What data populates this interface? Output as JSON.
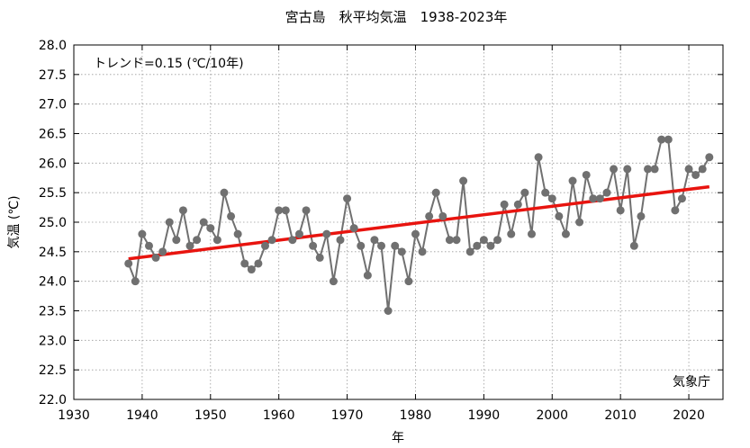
{
  "chart_data": {
    "type": "line",
    "title": "宮古島　秋平均気温　1938-2023年",
    "xlabel": "年",
    "ylabel": "気温 (℃)",
    "xlim": [
      1930,
      2025
    ],
    "ylim": [
      22.0,
      28.0
    ],
    "x_ticks": [
      "1930",
      "1940",
      "1950",
      "1960",
      "1970",
      "1980",
      "1990",
      "2000",
      "2010",
      "2020"
    ],
    "y_ticks": [
      "22.0",
      "22.5",
      "23.0",
      "23.5",
      "24.0",
      "24.5",
      "25.0",
      "25.5",
      "26.0",
      "26.5",
      "27.0",
      "27.5",
      "28.0"
    ],
    "grid": true,
    "trend_label": "トレンド=0.15 (℃/10年)",
    "credit": "気象庁",
    "series": [
      {
        "color": "#707070",
        "x": [
          1938,
          1939,
          1940,
          1941,
          1942,
          1943,
          1944,
          1945,
          1946,
          1947,
          1948,
          1949,
          1950,
          1951,
          1952,
          1953,
          1954,
          1955,
          1956,
          1957,
          1958,
          1959,
          1960,
          1961,
          1962,
          1963,
          1964,
          1965,
          1966,
          1967,
          1968,
          1969,
          1970,
          1971,
          1972,
          1973,
          1974,
          1975,
          1976,
          1977,
          1978,
          1979,
          1980,
          1981,
          1982,
          1983,
          1984,
          1985,
          1986,
          1987,
          1988,
          1989,
          1990,
          1991,
          1992,
          1993,
          1994,
          1995,
          1996,
          1997,
          1998,
          1999,
          2000,
          2001,
          2002,
          2003,
          2004,
          2005,
          2006,
          2007,
          2008,
          2009,
          2010,
          2011,
          2012,
          2013,
          2014,
          2015,
          2016,
          2017,
          2018,
          2019,
          2020,
          2021,
          2022,
          2023
        ],
        "y": [
          24.3,
          24.0,
          24.8,
          24.6,
          24.4,
          24.5,
          25.0,
          24.7,
          25.2,
          24.6,
          24.7,
          25.0,
          24.9,
          24.7,
          25.5,
          25.1,
          24.8,
          24.3,
          24.2,
          24.3,
          24.6,
          24.7,
          25.2,
          25.2,
          24.7,
          24.8,
          25.2,
          24.6,
          24.4,
          24.8,
          24.0,
          24.7,
          25.4,
          24.9,
          24.6,
          24.1,
          24.7,
          24.6,
          23.5,
          24.6,
          24.5,
          24.0,
          24.8,
          24.5,
          25.1,
          25.5,
          25.1,
          24.7,
          24.7,
          25.7,
          24.5,
          24.6,
          24.7,
          24.6,
          24.7,
          25.3,
          24.8,
          25.3,
          25.5,
          24.8,
          26.1,
          25.5,
          25.4,
          25.1,
          24.8,
          25.7,
          25.0,
          25.8,
          25.4,
          25.4,
          25.5,
          25.9,
          25.2,
          25.9,
          24.6,
          25.1,
          25.9,
          25.9,
          26.4,
          26.4,
          25.2,
          25.4,
          25.9,
          25.8,
          25.9,
          26.1
        ]
      },
      {
        "type": "trend",
        "color": "#e8140f",
        "x": [
          1938,
          2023
        ],
        "y": [
          24.38,
          25.6
        ]
      }
    ]
  }
}
